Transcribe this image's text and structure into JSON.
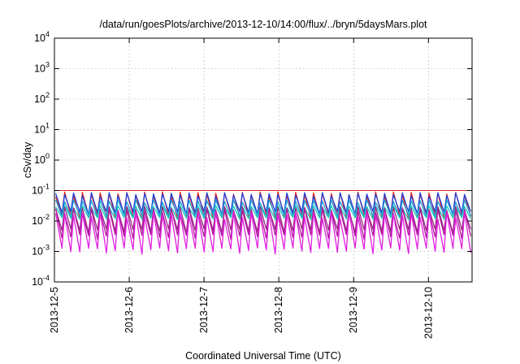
{
  "chart_data": {
    "type": "line",
    "title": "/data/run/goesPlots/archive/2013-12-10/14:00/flux/../bryn/5daysMars.plot",
    "xlabel": "Coordinated Universal Time (UTC)",
    "ylabel": "cSv/day",
    "y_scale": "log",
    "ylim": [
      0.0001,
      10000
    ],
    "xlim": [
      "2013-12-05",
      "2013-12-10 14:00"
    ],
    "grid": true,
    "legend": "none",
    "y_ticks": [
      {
        "base": "10",
        "exp": "-4"
      },
      {
        "base": "10",
        "exp": "-3"
      },
      {
        "base": "10",
        "exp": "-2"
      },
      {
        "base": "10",
        "exp": "-1"
      },
      {
        "base": "10",
        "exp": "0"
      },
      {
        "base": "10",
        "exp": "1"
      },
      {
        "base": "10",
        "exp": "2"
      },
      {
        "base": "10",
        "exp": "3"
      },
      {
        "base": "10",
        "exp": "4"
      }
    ],
    "x_ticks": [
      "2013-12-5",
      "2013-12-6",
      "2013-12-7",
      "2013-12-8",
      "2013-12-9",
      "2013-12-10"
    ],
    "x_tick_dates": [
      "2013-12-05",
      "2013-12-06",
      "2013-12-07",
      "2013-12-08",
      "2013-12-09",
      "2013-12-10"
    ],
    "sawtooth_peaks": 47,
    "reference_line": {
      "y": 0.1,
      "color": "#e0281e"
    },
    "series": [
      {
        "color": "#e8291e",
        "peak": 0.09,
        "trough": 0.012
      },
      {
        "color": "#1f3fd8",
        "peak": 0.085,
        "trough": 0.016
      },
      {
        "color": "#1f9fd8",
        "peak": 0.05,
        "trough": 0.013
      },
      {
        "color": "#14c8c0",
        "peak": 0.032,
        "trough": 0.011
      },
      {
        "color": "#9b2a8a",
        "peak": 0.03,
        "trough": 0.004
      },
      {
        "color": "#b01a9a",
        "peak": 0.026,
        "trough": 0.0025
      },
      {
        "color": "#e020e0",
        "peak": 0.02,
        "trough": 0.0008
      }
    ]
  }
}
